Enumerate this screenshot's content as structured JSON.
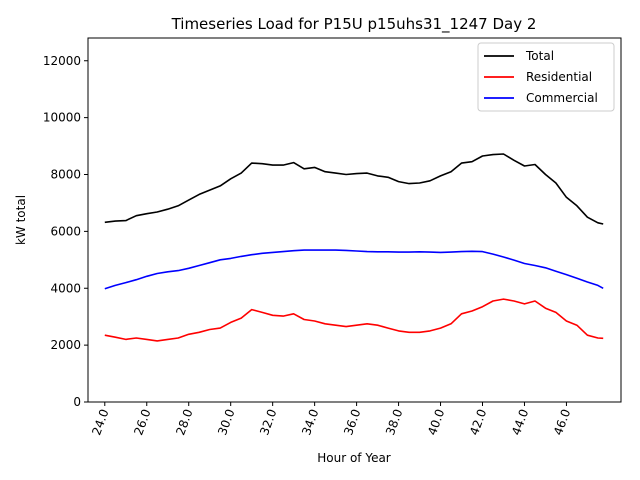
{
  "chart_data": {
    "type": "line",
    "title": "Timeseries Load for P15U p15uhs31_1247  Day 2",
    "xlabel": "Hour of Year",
    "ylabel": "kW total",
    "xlim": [
      23.2,
      48.6
    ],
    "ylim": [
      0,
      12800
    ],
    "xticks": [
      24,
      26,
      28,
      30,
      32,
      34,
      36,
      38,
      40,
      42,
      44,
      46
    ],
    "xtick_labels": [
      "24.0",
      "26.0",
      "28.0",
      "30.0",
      "32.0",
      "34.0",
      "36.0",
      "38.0",
      "40.0",
      "42.0",
      "44.0",
      "46.0"
    ],
    "yticks": [
      0,
      2000,
      4000,
      6000,
      8000,
      10000,
      12000
    ],
    "ytick_labels": [
      "0",
      "2000",
      "4000",
      "6000",
      "8000",
      "10000",
      "12000"
    ],
    "legend_position": "top-right",
    "x": [
      24.0,
      24.5,
      25.0,
      25.5,
      26.0,
      26.5,
      27.0,
      27.5,
      28.0,
      28.5,
      29.0,
      29.5,
      30.0,
      30.5,
      31.0,
      31.5,
      32.0,
      32.5,
      33.0,
      33.5,
      34.0,
      34.5,
      35.0,
      35.5,
      36.0,
      36.5,
      37.0,
      37.5,
      38.0,
      38.5,
      39.0,
      39.5,
      40.0,
      40.5,
      41.0,
      41.5,
      42.0,
      42.5,
      43.0,
      43.5,
      44.0,
      44.5,
      45.0,
      45.5,
      46.0,
      46.5,
      47.0,
      47.5,
      47.75
    ],
    "series": [
      {
        "name": "Total",
        "color": "#000000",
        "values": [
          6320,
          6360,
          6380,
          6550,
          6620,
          6680,
          6780,
          6900,
          7100,
          7300,
          7450,
          7600,
          7850,
          8050,
          8400,
          8380,
          8330,
          8330,
          8420,
          8200,
          8250,
          8100,
          8050,
          8000,
          8030,
          8050,
          7950,
          7900,
          7750,
          7680,
          7700,
          7780,
          7950,
          8100,
          8400,
          8450,
          8650,
          8700,
          8720,
          8500,
          8300,
          8350,
          8000,
          7700,
          7200,
          6900,
          6500,
          6300,
          6260
        ]
      },
      {
        "name": "Residential",
        "color": "#ff0000",
        "values": [
          2350,
          2280,
          2200,
          2250,
          2200,
          2150,
          2200,
          2250,
          2380,
          2450,
          2550,
          2600,
          2800,
          2950,
          3250,
          3150,
          3050,
          3020,
          3100,
          2900,
          2850,
          2750,
          2700,
          2650,
          2700,
          2750,
          2700,
          2600,
          2500,
          2450,
          2450,
          2500,
          2600,
          2750,
          3100,
          3200,
          3350,
          3550,
          3620,
          3550,
          3450,
          3550,
          3300,
          3150,
          2850,
          2700,
          2350,
          2250,
          2240
        ]
      },
      {
        "name": "Commercial",
        "color": "#0000ff",
        "values": [
          3980,
          4100,
          4200,
          4300,
          4420,
          4520,
          4580,
          4620,
          4700,
          4800,
          4900,
          5000,
          5050,
          5120,
          5180,
          5230,
          5260,
          5290,
          5320,
          5340,
          5340,
          5340,
          5340,
          5330,
          5310,
          5290,
          5280,
          5280,
          5270,
          5270,
          5280,
          5270,
          5260,
          5270,
          5290,
          5300,
          5290,
          5200,
          5100,
          4990,
          4870,
          4800,
          4720,
          4600,
          4480,
          4350,
          4220,
          4100,
          4000
        ]
      }
    ]
  }
}
